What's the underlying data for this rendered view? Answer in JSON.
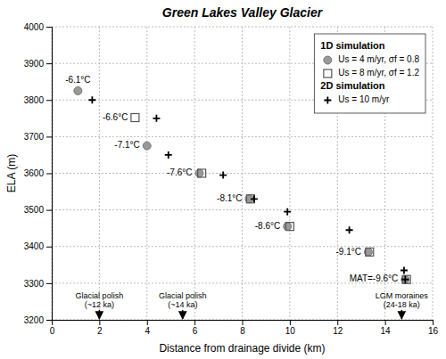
{
  "chart_data": {
    "type": "scatter",
    "title": "Green Lakes Valley Glacier",
    "xlabel": "Distance from drainage divide (km)",
    "ylabel": "ELA (m)",
    "xlim": [
      0,
      16
    ],
    "ylim": [
      3200,
      4000
    ],
    "xticks": [
      0,
      2,
      4,
      6,
      8,
      10,
      12,
      14,
      16
    ],
    "yticks": [
      3200,
      3300,
      3400,
      3500,
      3600,
      3700,
      3800,
      3900,
      4000
    ],
    "grid": true,
    "legend": "upper right",
    "series": [
      {
        "name": "Us = 4 m/yr, σf = 0.8",
        "group": "1D simulation",
        "marker": "circle",
        "color": "#999999",
        "x": [
          1.1,
          4.0,
          6.2,
          8.3,
          9.9,
          13.3,
          14.85
        ],
        "values": [
          3825,
          3675,
          3600,
          3530,
          3455,
          3385,
          3310
        ],
        "labels": [
          "-6.1°C",
          "-7.1°C",
          "-7.6°C",
          "-8.1°C",
          "-8.6°C",
          "-9.1°C",
          "MAT=-9.6°C"
        ]
      },
      {
        "name": "Us = 8 m/yr, σf = 1.2",
        "group": "1D simulation",
        "marker": "square-open",
        "color": "#555555",
        "x": [
          3.5,
          6.3,
          8.35,
          10.0,
          13.35,
          14.9
        ],
        "values": [
          3752,
          3600,
          3530,
          3455,
          3385,
          3310
        ],
        "labels": [
          "-6.6°C",
          null,
          null,
          null,
          null,
          null
        ]
      },
      {
        "name": "Us = 10 m/yr",
        "group": "2D simulation",
        "marker": "plus",
        "color": "black",
        "x": [
          1.7,
          4.4,
          4.9,
          7.2,
          8.5,
          9.9,
          12.5,
          14.8,
          14.85
        ],
        "values": [
          3800,
          3750,
          3650,
          3595,
          3530,
          3495,
          3445,
          3335,
          3310
        ]
      }
    ],
    "annotations": [
      {
        "text": "Glacial polish\n(~12 ka)",
        "x": 2.0
      },
      {
        "text": "Glacial polish\n(~14 ka)",
        "x": 5.5
      },
      {
        "text": "LGM moraines\n(24-18 ka)",
        "x": 14.7
      }
    ]
  }
}
